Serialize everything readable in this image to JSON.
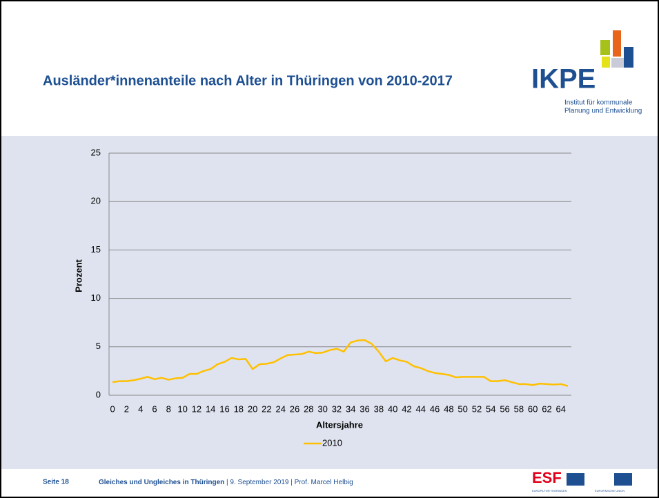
{
  "header": {
    "title": "Ausländer*innenanteile nach Alter in Thüringen von 2010-2017"
  },
  "logo": {
    "name": "IKPE",
    "line1": "Institut für kommunale",
    "line2": "Planung und Entwicklung"
  },
  "chart_data": {
    "type": "line",
    "categories": [
      0,
      null,
      2,
      null,
      4,
      null,
      6,
      null,
      8,
      null,
      10,
      null,
      12,
      null,
      14,
      null,
      16,
      null,
      18,
      null,
      20,
      null,
      22,
      null,
      24,
      null,
      26,
      null,
      28,
      null,
      30,
      null,
      32,
      null,
      34,
      null,
      36,
      null,
      38,
      null,
      40,
      null,
      42,
      null,
      44,
      null,
      46,
      null,
      48,
      null,
      50,
      null,
      52,
      null,
      54,
      null,
      56,
      null,
      58,
      null,
      60,
      null,
      62,
      null,
      64,
      null
    ],
    "series": [
      {
        "name": "2010",
        "color": "#ffc000",
        "values": [
          1.35,
          1.45,
          1.45,
          1.55,
          1.7,
          1.9,
          1.65,
          1.8,
          1.6,
          1.75,
          1.8,
          2.2,
          2.2,
          2.5,
          2.7,
          3.2,
          3.45,
          3.85,
          3.7,
          3.75,
          2.7,
          3.2,
          3.25,
          3.4,
          3.8,
          4.15,
          4.2,
          4.25,
          4.5,
          4.35,
          4.4,
          4.65,
          4.8,
          4.5,
          5.45,
          5.65,
          5.7,
          5.3,
          4.5,
          3.5,
          3.85,
          3.6,
          3.45,
          3.0,
          2.8,
          2.5,
          2.3,
          2.2,
          2.1,
          1.85,
          1.9,
          1.9,
          1.9,
          1.9,
          1.45,
          1.45,
          1.55,
          1.35,
          1.15,
          1.15,
          1.05,
          1.2,
          1.15,
          1.1,
          1.15,
          0.95
        ]
      }
    ],
    "ylim": [
      0,
      25
    ],
    "yticks": [
      0,
      5,
      10,
      15,
      20,
      25
    ],
    "xlabel": "Altersjahre",
    "ylabel": "Prozent",
    "grid": true,
    "legend": "bottom"
  },
  "footer": {
    "page": "Seite 18",
    "title": "Gleiches und Ungleiches in Thüringen",
    "rest": "| 9. September 2019 | Prof. Marcel Helbig",
    "esf": "ESF",
    "esf_sub": "EUROPA FÜR THÜRINGEN",
    "eu": "EUROPÄISCHE UNION"
  }
}
